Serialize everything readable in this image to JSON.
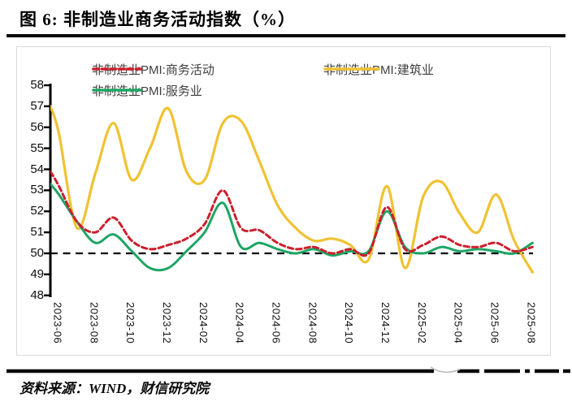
{
  "title": "图 6:  非制造业商务活动指数（%）",
  "source": "资料来源：WIND，财信研究院",
  "legend": [
    {
      "id": "business",
      "label": "非制造业PMI:商务活动",
      "color": "#cc1f2c",
      "dash": true
    },
    {
      "id": "services",
      "label": "非制造业PMI:服务业",
      "color": "#1ea564",
      "dash": false
    },
    {
      "id": "construction",
      "label": "非制造业PMI:建筑业",
      "color": "#f0c232",
      "dash": false
    }
  ],
  "chart_data": {
    "type": "line",
    "title": "非制造业商务活动指数（%）",
    "y_axis": {
      "min": 48,
      "max": 58,
      "step": 1,
      "ticks": [
        58,
        57,
        56,
        55,
        54,
        53,
        52,
        51,
        50,
        49,
        48
      ]
    },
    "reference_line": 50,
    "reference_line_color": "#000000",
    "axis_color": "#000000",
    "grid": false,
    "legend_position": "top",
    "x_tick_labels": [
      "2023-06",
      "2023-08",
      "2023-10",
      "2023-12",
      "2024-02",
      "2024-04",
      "2024-06",
      "2024-08",
      "2024-10",
      "2024-12",
      "2025-02",
      "2025-04",
      "2025-06",
      "2025-08"
    ],
    "months": [
      "2023-06",
      "2023-07",
      "2023-08",
      "2023-09",
      "2023-10",
      "2023-11",
      "2023-12",
      "2024-01",
      "2024-02",
      "2024-03",
      "2024-04",
      "2024-05",
      "2024-06",
      "2024-07",
      "2024-08",
      "2024-09",
      "2024-10",
      "2024-11",
      "2024-12",
      "2025-01",
      "2025-02",
      "2025-03",
      "2025-04",
      "2025-05",
      "2025-06",
      "2025-07",
      "2025-08"
    ],
    "series": [
      {
        "name": "非制造业PMI:商务活动",
        "color": "#cc1f2c",
        "style": "dashed",
        "edge_value_at_axis": 53.9,
        "values": [
          53.2,
          51.5,
          51.0,
          51.7,
          50.6,
          50.2,
          50.4,
          50.7,
          51.4,
          53.0,
          51.2,
          51.1,
          50.5,
          50.2,
          50.3,
          50.0,
          50.2,
          50.0,
          52.2,
          50.2,
          50.4,
          50.8,
          50.4,
          50.3,
          50.5,
          50.1,
          50.3
        ]
      },
      {
        "name": "非制造业PMI:服务业",
        "color": "#1ea564",
        "style": "solid",
        "edge_value_at_axis": 53.3,
        "values": [
          52.8,
          51.5,
          50.5,
          50.9,
          50.1,
          49.3,
          49.3,
          50.1,
          51.0,
          52.4,
          50.3,
          50.5,
          50.2,
          50.0,
          50.2,
          49.9,
          50.1,
          50.1,
          52.0,
          50.3,
          50.0,
          50.3,
          50.1,
          50.2,
          50.1,
          50.0,
          50.5
        ]
      },
      {
        "name": "非制造业PMI:建筑业",
        "color": "#f0c232",
        "style": "solid",
        "edge_value_at_axis": 57.0,
        "values": [
          55.7,
          51.2,
          53.8,
          56.2,
          53.5,
          55.0,
          56.9,
          53.9,
          53.5,
          56.2,
          56.3,
          54.4,
          52.3,
          51.2,
          50.6,
          50.7,
          50.4,
          49.7,
          53.2,
          49.3,
          52.7,
          53.4,
          51.9,
          51.0,
          52.8,
          50.6,
          49.1
        ]
      }
    ]
  }
}
